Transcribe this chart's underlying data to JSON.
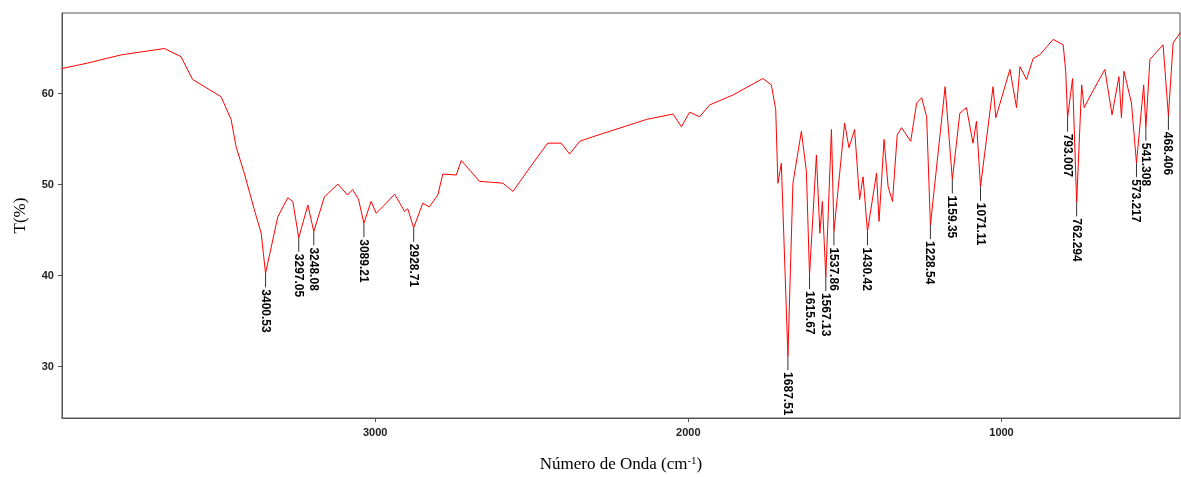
{
  "chart_data": {
    "type": "line",
    "xlabel": "Número de Onda (cm$^{-1}$)",
    "ylabel": "T(%)",
    "xlim": [
      4000,
      430
    ],
    "ylim": [
      24.3,
      68.8
    ],
    "xticks": [
      3000,
      2000,
      1000
    ],
    "yticks": [
      30,
      40,
      50,
      60
    ],
    "grid": false,
    "marker": "none",
    "line_style": "solid",
    "series": [
      {
        "color": "#ff0000",
        "x": [
          4000,
          3918,
          3811,
          3673,
          3620,
          3583,
          3492,
          3460,
          3444,
          3418,
          3386,
          3364,
          3350,
          3311,
          3279,
          3263,
          3244,
          3215,
          3196,
          3162,
          3119,
          3088,
          3072,
          3053,
          3036,
          3013,
          2997,
          2970,
          2938,
          2906,
          2896,
          2877,
          2848,
          2827,
          2800,
          2784,
          2741,
          2725,
          2667,
          2629,
          2592,
          2560,
          2496,
          2449,
          2406,
          2379,
          2347,
          2305,
          2134,
          2049,
          2022,
          1996,
          1964,
          1932,
          1857,
          1762,
          1735,
          1721,
          1714,
          1703,
          1682,
          1666,
          1639,
          1623,
          1613,
          1591,
          1580,
          1572,
          1561,
          1543,
          1535,
          1501,
          1487,
          1469,
          1453,
          1442,
          1428,
          1399,
          1391,
          1375,
          1362,
          1348,
          1333,
          1319,
          1290,
          1271,
          1255,
          1239,
          1227,
          1180,
          1157,
          1133,
          1112,
          1091,
          1080,
          1067,
          1027,
          1018,
          973,
          952,
          941,
          920,
          899,
          878,
          835,
          803,
          795,
          789,
          773,
          760,
          744,
          736,
          718,
          670,
          647,
          625,
          617,
          609,
          585,
          569,
          546,
          539,
          526,
          484,
          467,
          452,
          430
        ],
        "values": [
          62.7,
          63.3,
          64.2,
          64.9,
          64.0,
          61.5,
          59.6,
          57.1,
          54.1,
          51.2,
          47.2,
          44.6,
          40.2,
          46.4,
          48.5,
          48.1,
          44.1,
          47.7,
          44.8,
          48.6,
          50.0,
          48.8,
          49.4,
          48.3,
          45.7,
          48.1,
          46.8,
          47.7,
          48.9,
          47.0,
          47.3,
          45.2,
          47.9,
          47.5,
          48.8,
          51.1,
          51.0,
          52.6,
          50.3,
          50.2,
          50.1,
          49.2,
          52.3,
          54.5,
          54.5,
          53.3,
          54.7,
          55.2,
          57.1,
          57.7,
          56.3,
          57.9,
          57.4,
          58.7,
          59.8,
          61.6,
          60.9,
          58.2,
          50.1,
          52.3,
          31.1,
          50.1,
          55.8,
          51.4,
          40.0,
          53.2,
          44.6,
          48.1,
          39.8,
          56.0,
          44.8,
          56.7,
          54.0,
          56.0,
          48.3,
          50.8,
          44.8,
          51.2,
          45.9,
          54.9,
          49.7,
          48.1,
          55.4,
          56.2,
          54.7,
          58.9,
          59.5,
          57.4,
          45.5,
          60.7,
          50.5,
          57.8,
          58.4,
          54.5,
          56.9,
          49.7,
          60.7,
          57.3,
          62.6,
          58.4,
          62.9,
          61.5,
          63.8,
          64.2,
          65.9,
          65.3,
          62.4,
          57.3,
          61.6,
          48.0,
          60.9,
          58.4,
          59.6,
          62.6,
          57.6,
          61.8,
          57.3,
          62.4,
          58.9,
          52.3,
          60.9,
          56.3,
          63.7,
          65.3,
          57.5,
          65.5,
          66.6
        ]
      }
    ],
    "annotations": [
      {
        "text": "3400.53",
        "x": 3350,
        "y": 40.2
      },
      {
        "text": "3297.05",
        "x": 3244,
        "y": 44.1
      },
      {
        "text": "3248.08",
        "x": 3196,
        "y": 44.8
      },
      {
        "text": "3089.21",
        "x": 3036,
        "y": 45.7
      },
      {
        "text": "2928.71",
        "x": 2877,
        "y": 45.2
      },
      {
        "text": "1687.51",
        "x": 1682,
        "y": 31.1
      },
      {
        "text": "1615.67",
        "x": 1613,
        "y": 40.0
      },
      {
        "text": "1567.13",
        "x": 1561,
        "y": 39.8
      },
      {
        "text": "1537.86",
        "x": 1535,
        "y": 44.8
      },
      {
        "text": "1430.42",
        "x": 1428,
        "y": 44.8
      },
      {
        "text": "1228.54",
        "x": 1227,
        "y": 45.5
      },
      {
        "text": "1159.35",
        "x": 1157,
        "y": 50.5
      },
      {
        "text": "1071.11",
        "x": 1067,
        "y": 49.7
      },
      {
        "text": "793.007",
        "x": 789,
        "y": 57.3
      },
      {
        "text": "762.294",
        "x": 760,
        "y": 48.0
      },
      {
        "text": "573.217",
        "x": 569,
        "y": 52.3
      },
      {
        "text": "541.308",
        "x": 539,
        "y": 56.3
      },
      {
        "text": "468.406",
        "x": 467,
        "y": 57.5
      }
    ]
  }
}
